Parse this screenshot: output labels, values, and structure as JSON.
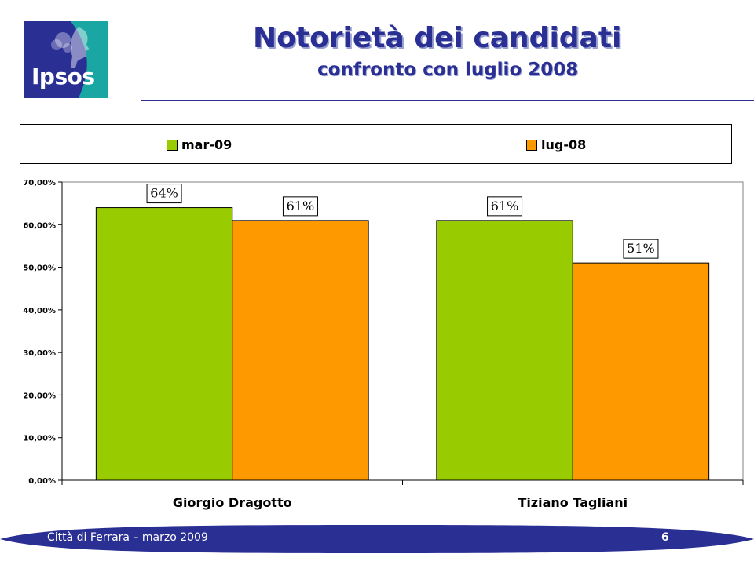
{
  "logo": {
    "text": "Ipsos",
    "colors": {
      "blue": "#2a2f94",
      "teal": "#1aa6a2"
    }
  },
  "header": {
    "title": "Notorietà dei candidati",
    "subtitle": "confronto con luglio 2008"
  },
  "footer": {
    "text": "Città di Ferrara – marzo 2009",
    "page": "6"
  },
  "chart_data": {
    "type": "bar",
    "categories": [
      "Giorgio Dragotto",
      "Tiziano Tagliani"
    ],
    "series": [
      {
        "name": "mar-09",
        "values": [
          0.64,
          0.61
        ],
        "labels": [
          "64%",
          "61%"
        ],
        "color": "#99cc00"
      },
      {
        "name": "lug-08",
        "values": [
          0.61,
          0.51
        ],
        "labels": [
          "61%",
          "51%"
        ],
        "color": "#ff9900"
      }
    ],
    "ylim": [
      0,
      0.7
    ],
    "yticks": [
      "0,00%",
      "10,00%",
      "20,00%",
      "30,00%",
      "40,00%",
      "50,00%",
      "60,00%",
      "70,00%"
    ],
    "legend": "top",
    "grid": false
  }
}
